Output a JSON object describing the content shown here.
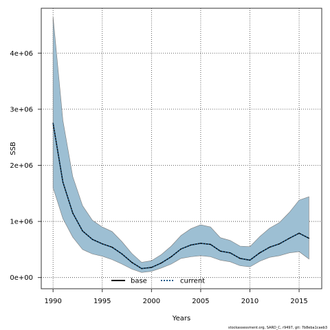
{
  "chart_data": {
    "type": "area",
    "xlabel": "Years",
    "ylabel": "SSB",
    "xlim": [
      1988.8,
      2017.3
    ],
    "ylim": [
      -200000,
      4800000
    ],
    "xticks": [
      1990,
      1995,
      2000,
      2005,
      2010,
      2015
    ],
    "yticks": [
      0,
      1000000,
      2000000,
      3000000,
      4000000
    ],
    "ytick_labels": [
      "0e+00",
      "1e+06",
      "2e+06",
      "3e+06",
      "4e+06"
    ],
    "grid": true,
    "legend_position": "bottom-center",
    "x": [
      1990,
      1991,
      1992,
      1993,
      1994,
      1995,
      1996,
      1997,
      1998,
      1999,
      2000,
      2001,
      2002,
      2003,
      2004,
      2005,
      2006,
      2007,
      2008,
      2009,
      2010,
      2011,
      2012,
      2013,
      2014,
      2015,
      2016
    ],
    "band": {
      "upper": [
        4650000,
        2800000,
        1800000,
        1280000,
        1020000,
        900000,
        820000,
        640000,
        430000,
        270000,
        300000,
        410000,
        560000,
        750000,
        870000,
        940000,
        900000,
        710000,
        660000,
        560000,
        550000,
        730000,
        880000,
        980000,
        1160000,
        1380000,
        1440000
      ],
      "lower": [
        1600000,
        1050000,
        720000,
        500000,
        420000,
        380000,
        320000,
        240000,
        150000,
        90000,
        110000,
        170000,
        240000,
        340000,
        370000,
        390000,
        370000,
        310000,
        280000,
        210000,
        190000,
        290000,
        360000,
        390000,
        440000,
        460000,
        330000
      ]
    },
    "series": [
      {
        "name": "base",
        "style": "solid",
        "color": "#000000",
        "values": [
          2750000,
          1700000,
          1150000,
          830000,
          680000,
          600000,
          540000,
          420000,
          270000,
          160000,
          180000,
          260000,
          370000,
          510000,
          580000,
          610000,
          590000,
          470000,
          440000,
          340000,
          310000,
          440000,
          540000,
          600000,
          700000,
          790000,
          700000
        ]
      },
      {
        "name": "current",
        "style": "dotted",
        "color": "#000000",
        "values": [
          2750000,
          1700000,
          1150000,
          830000,
          680000,
          600000,
          540000,
          420000,
          270000,
          160000,
          180000,
          260000,
          370000,
          510000,
          580000,
          610000,
          590000,
          470000,
          440000,
          340000,
          310000,
          440000,
          540000,
          600000,
          700000,
          790000,
          700000
        ]
      }
    ]
  },
  "colors": {
    "band_fill": "#9dbfd3",
    "band_stroke": "#7a7a7a",
    "current_line": "#1b5a8a",
    "grid": "#333333"
  },
  "footer": "stockassessment.org, SARD_C, r9497, git: 7b8eba1caeb3"
}
